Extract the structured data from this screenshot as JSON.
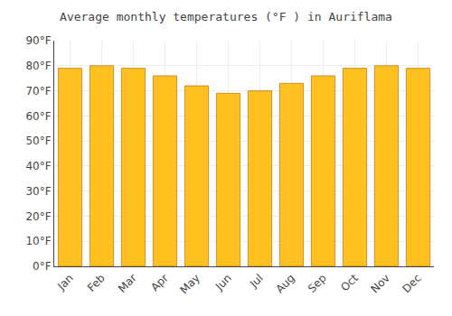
{
  "chart_data": {
    "type": "bar",
    "title": "Average monthly temperatures (°F ) in Auriflama",
    "categories": [
      "Jan",
      "Feb",
      "Mar",
      "Apr",
      "May",
      "Jun",
      "Jul",
      "Aug",
      "Sep",
      "Oct",
      "Nov",
      "Dec"
    ],
    "values": [
      79,
      80,
      79,
      76,
      72,
      69,
      70,
      73,
      76,
      79,
      80,
      79
    ],
    "color": "#FFC020",
    "ylim": [
      0,
      90
    ],
    "yticks": [
      {
        "value": 0,
        "label": "0°F"
      },
      {
        "value": 10,
        "label": "10°F"
      },
      {
        "value": 20,
        "label": "20°F"
      },
      {
        "value": 30,
        "label": "30°F"
      },
      {
        "value": 40,
        "label": "40°F"
      },
      {
        "value": 50,
        "label": "50°F"
      },
      {
        "value": 60,
        "label": "60°F"
      },
      {
        "value": 70,
        "label": "70°F"
      },
      {
        "value": 80,
        "label": "80°F"
      },
      {
        "value": 90,
        "label": "90°F"
      }
    ],
    "grid": true
  }
}
